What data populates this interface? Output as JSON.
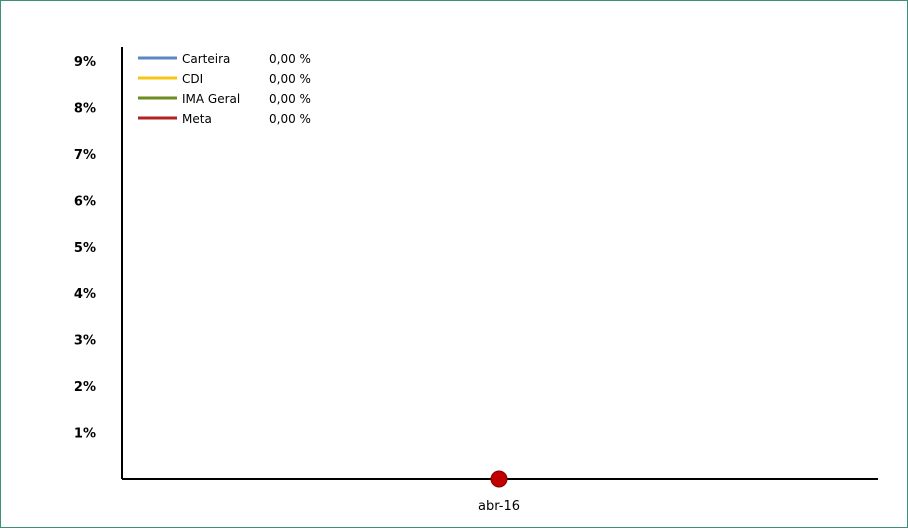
{
  "chart_data": {
    "type": "line",
    "x": [
      "abr-16"
    ],
    "ylim": [
      0,
      9
    ],
    "y_ticks": [
      "1%",
      "2%",
      "3%",
      "4%",
      "5%",
      "6%",
      "7%",
      "8%",
      "9%"
    ],
    "grid": false,
    "legend_position": "top-left",
    "series": [
      {
        "name": "Carteira",
        "value_label": "0,00 %",
        "values": [
          0
        ],
        "color": "#5b87c7"
      },
      {
        "name": "CDI",
        "value_label": "0,00 %",
        "values": [
          0
        ],
        "color": "#f5c518"
      },
      {
        "name": "IMA Geral",
        "value_label": "0,00 %",
        "values": [
          0
        ],
        "color": "#6b8e23"
      },
      {
        "name": "Meta",
        "value_label": "0,00 %",
        "values": [
          0
        ],
        "color": "#b22222"
      }
    ],
    "marker": {
      "x": "abr-16",
      "y": 0,
      "color": "#c00000"
    }
  }
}
